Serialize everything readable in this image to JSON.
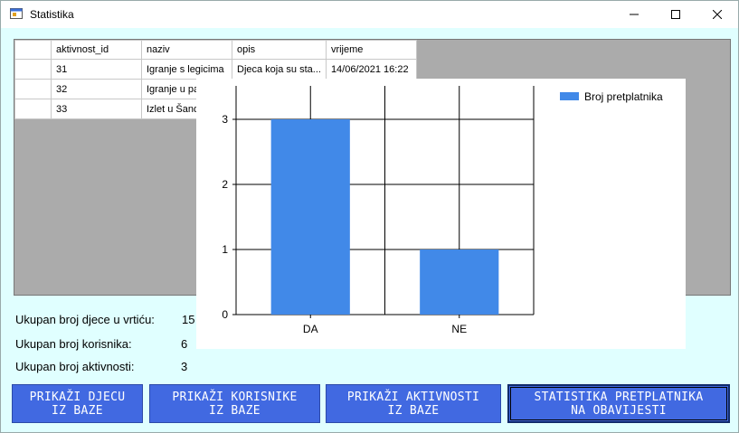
{
  "window": {
    "title": "Statistika",
    "accent": "#E0FFFF"
  },
  "table": {
    "columns": [
      "",
      "aktivnost_id",
      "naziv",
      "opis",
      "vrijeme"
    ],
    "rows": [
      [
        "",
        "31",
        "Igranje s legicima",
        "Djeca koja su sta...",
        "14/06/2021 16:22"
      ],
      [
        "",
        "32",
        "Igranje u par",
        "",
        ""
      ],
      [
        "",
        "33",
        "Izlet u Šandr",
        "",
        ""
      ]
    ]
  },
  "chart_data": {
    "type": "bar",
    "categories": [
      "DA",
      "NE"
    ],
    "series": [
      {
        "name": "Broj pretplatnika",
        "values": [
          3,
          1
        ],
        "color": "#4189E8"
      }
    ],
    "yticks": [
      "0",
      "1",
      "2",
      "3"
    ],
    "ylim": [
      0,
      3
    ],
    "grid": true,
    "legend_position": "top-right"
  },
  "stats": {
    "children_label": "Ukupan broj djece u vrtiću:",
    "children_value": "15",
    "users_label": "Ukupan broj korisnika:",
    "users_value": "6",
    "activities_label": "Ukupan broj aktivnosti:",
    "activities_value": "3"
  },
  "buttons": {
    "children": [
      "PRIKAŽI DJECU",
      "IZ BAZE"
    ],
    "users": [
      "PRIKAŽI KORISNIKE",
      "IZ BAZE"
    ],
    "activities": [
      "PRIKAŽI AKTIVNOSTI",
      "IZ BAZE"
    ],
    "subscribers": [
      "STATISTIKA PRETPLATNIKA",
      "NA OBAVIJESTI"
    ],
    "color": "#4169E1"
  },
  "icons": {
    "app": "app-window-icon",
    "minimize": "minimize-icon",
    "maximize": "maximize-icon",
    "close": "close-icon"
  }
}
